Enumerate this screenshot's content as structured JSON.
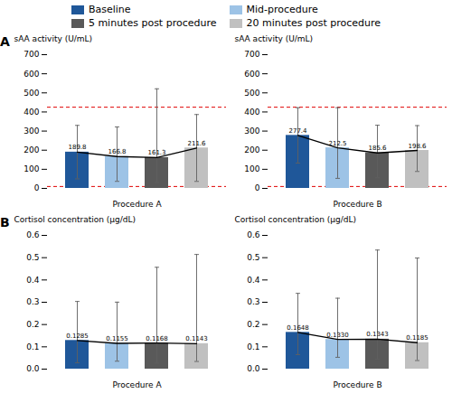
{
  "chart_data": [
    {
      "type": "bar",
      "xlabel": "Procedure A",
      "ylabel": "sAA activity (U/mL)",
      "categories": [
        "Baseline",
        "Mid-procedure",
        "5 minutes post procedure",
        "20 minutes post procedure"
      ],
      "ylim": [
        0,
        700
      ],
      "yticks": [
        0,
        100,
        200,
        300,
        400,
        500,
        600,
        700
      ],
      "grid": false,
      "tick_labels": "y",
      "data_labels": true,
      "legend": "top",
      "annotations": [
        {
          "text": "A"
        }
      ],
      "series": [
        {
          "type": "bar",
          "colors": [
            "#1f5799",
            "#9dc3e6",
            "#595959",
            "#c0c0c0"
          ],
          "values": [
            189.8,
            166.8,
            161.3,
            211.6
          ],
          "error_up": [
            140,
            155,
            360,
            175
          ],
          "error_down": [
            140,
            130,
            130,
            175
          ],
          "error_bar_color": "#606060"
        },
        {
          "type": "line",
          "color": "black",
          "values": [
            189.8,
            166.8,
            161.3,
            211.6
          ]
        }
      ],
      "reference_lines": [
        {
          "value": 425,
          "color": "#e00000",
          "line_style": "dashed"
        },
        {
          "value": 10,
          "color": "#e00000",
          "line_style": "dashed"
        }
      ]
    },
    {
      "type": "bar",
      "xlabel": "Procedure B",
      "ylabel": "sAA activity (U/mL)",
      "categories": [
        "Baseline",
        "Mid-procedure",
        "5 minutes post procedure",
        "20 minutes post procedure"
      ],
      "ylim": [
        0,
        700
      ],
      "yticks": [
        0,
        100,
        200,
        300,
        400,
        500,
        600,
        700
      ],
      "grid": false,
      "tick_labels": "y",
      "data_labels": true,
      "series": [
        {
          "type": "bar",
          "colors": [
            "#1f5799",
            "#9dc3e6",
            "#595959",
            "#c0c0c0"
          ],
          "values": [
            277.4,
            212.5,
            185.6,
            198.6
          ],
          "error_up": [
            145,
            210,
            145,
            130
          ],
          "error_down": [
            145,
            160,
            130,
            110
          ],
          "error_bar_color": "#606060"
        },
        {
          "type": "line",
          "color": "black",
          "values": [
            277.4,
            212.5,
            185.6,
            198.6
          ]
        }
      ],
      "reference_lines": [
        {
          "value": 425,
          "color": "#e00000",
          "line_style": "dashed"
        },
        {
          "value": 10,
          "color": "#e00000",
          "line_style": "dashed"
        }
      ]
    },
    {
      "type": "bar",
      "xlabel": "Procedure A",
      "ylabel": "Cortisol concentration (μg/dL)",
      "categories": [
        "Baseline",
        "Mid-procedure",
        "5 minutes post procedure",
        "20 minutes post procedure"
      ],
      "ylim": [
        0,
        0.6
      ],
      "yticks": [
        {
          "value": 0.0,
          "label": "0.0"
        },
        0.1,
        0.2,
        0.3,
        0.4,
        0.5,
        0.6
      ],
      "grid": false,
      "tick_labels": "y",
      "data_labels": true,
      "annotations": [
        {
          "text": "B"
        }
      ],
      "series": [
        {
          "type": "bar",
          "colors": [
            "#1f5799",
            "#9dc3e6",
            "#595959",
            "#c0c0c0"
          ],
          "values": [
            0.1285,
            0.1155,
            0.1168,
            0.1143
          ],
          "value_labels": [
            "0.1285",
            "0.1155",
            "0.1168",
            "0.1143"
          ],
          "error_up": [
            0.175,
            0.185,
            0.34,
            0.4
          ],
          "error_down": [
            0.1,
            0.08,
            0.09,
            0.08
          ],
          "error_bar_color": "#606060"
        },
        {
          "type": "line",
          "color": "black",
          "values": [
            0.1285,
            0.1155,
            0.1168,
            0.1143
          ]
        }
      ]
    },
    {
      "type": "bar",
      "xlabel": "Procedure B",
      "ylabel": "Cortisol concentration (μg/dL)",
      "categories": [
        "Baseline",
        "Mid-procedure",
        "5 minutes post procedure",
        "20 minutes post procedure"
      ],
      "ylim": [
        0,
        0.6
      ],
      "yticks": [
        {
          "value": 0.0,
          "label": "0.0"
        },
        0.1,
        0.2,
        0.3,
        0.4,
        0.5,
        0.6
      ],
      "grid": false,
      "tick_labels": "y",
      "data_labels": true,
      "series": [
        {
          "type": "bar",
          "colors": [
            "#1f5799",
            "#9dc3e6",
            "#595959",
            "#c0c0c0"
          ],
          "values": [
            0.1648,
            0.133,
            0.1343,
            0.1185
          ],
          "value_labels": [
            "0.1648",
            "0.1330",
            "0.1343",
            "0.1185"
          ],
          "error_up": [
            0.175,
            0.185,
            0.4,
            0.38
          ],
          "error_down": [
            0.1,
            0.08,
            0.09,
            0.08
          ],
          "error_bar_color": "#606060"
        },
        {
          "type": "line",
          "color": "black",
          "values": [
            0.1648,
            0.133,
            0.1343,
            0.1185
          ]
        }
      ]
    }
  ]
}
